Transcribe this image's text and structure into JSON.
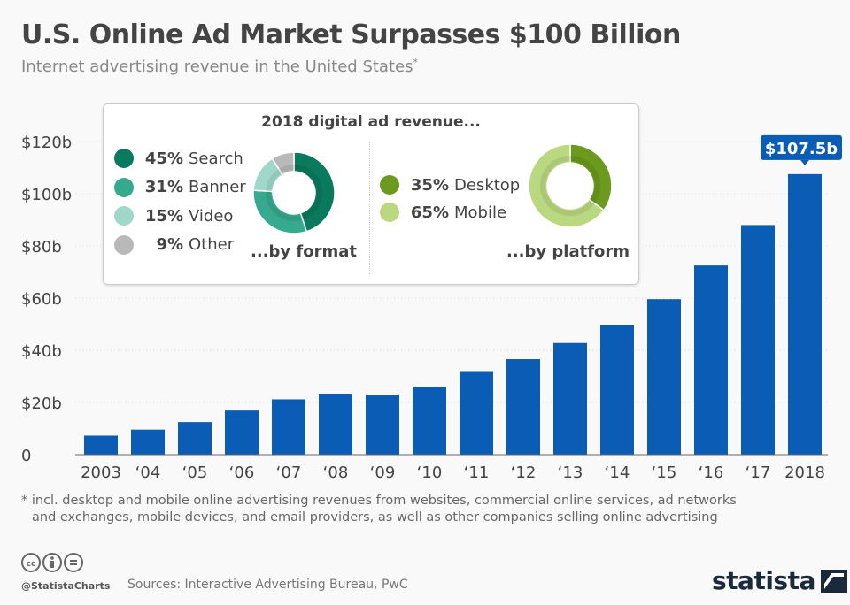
{
  "header": {
    "title": "U.S. Online Ad Market Surpasses $100 Billion",
    "subtitle": "Internet advertising revenue in the United States",
    "subtitle_mark": "*"
  },
  "chart_data": {
    "type": "bar",
    "categories": [
      "2003",
      "'04",
      "'05",
      "'06",
      "'07",
      "'08",
      "'09",
      "'10",
      "'11",
      "'12",
      "'13",
      "'14",
      "'15",
      "'16",
      "'17",
      "2018"
    ],
    "values": [
      7.3,
      9.6,
      12.5,
      16.9,
      21.2,
      23.4,
      22.7,
      26.0,
      31.7,
      36.6,
      42.8,
      49.5,
      59.6,
      72.5,
      88.0,
      107.5
    ],
    "ylim": [
      0,
      120
    ],
    "yticks": [
      0,
      20,
      40,
      60,
      80,
      100,
      120
    ],
    "ytick_labels": [
      "0",
      "$20b",
      "$40b",
      "$60b",
      "$80b",
      "$100b",
      "$120b"
    ],
    "unit": "billion USD",
    "bar_color": "#0b5cb5",
    "annotation": {
      "category": "2018",
      "label": "$107.5b"
    },
    "grid": true
  },
  "inset": {
    "title": "2018 digital ad revenue...",
    "by_format": {
      "label": "...by format",
      "slices": [
        {
          "name": "Search",
          "pct": 45,
          "pct_label": "45%",
          "color": "#0a7a5e"
        },
        {
          "name": "Banner",
          "pct": 31,
          "pct_label": "31%",
          "color": "#36aa8e"
        },
        {
          "name": "Video",
          "pct": 15,
          "pct_label": "15%",
          "color": "#9fd8c9"
        },
        {
          "name": "Other",
          "pct": 9,
          "pct_label": "9%",
          "color": "#b9b9b9"
        }
      ]
    },
    "by_platform": {
      "label": "...by platform",
      "slices": [
        {
          "name": "Desktop",
          "pct": 35,
          "pct_label": "35%",
          "color": "#6b9a1e"
        },
        {
          "name": "Mobile",
          "pct": 65,
          "pct_label": "65%",
          "color": "#b9d87f"
        }
      ]
    }
  },
  "footer": {
    "note_line1": "* incl. desktop and mobile online advertising revenues from websites, commercial online services, ad networks",
    "note_line2": "and exchanges, mobile devices, and email providers, as well as other companies selling online advertising",
    "handle": "@StatistaCharts",
    "sources": "Sources: Interactive Advertising Bureau, PwC",
    "logo": "statista",
    "license_icons": [
      "cc-icon",
      "by-icon",
      "nd-icon"
    ]
  }
}
